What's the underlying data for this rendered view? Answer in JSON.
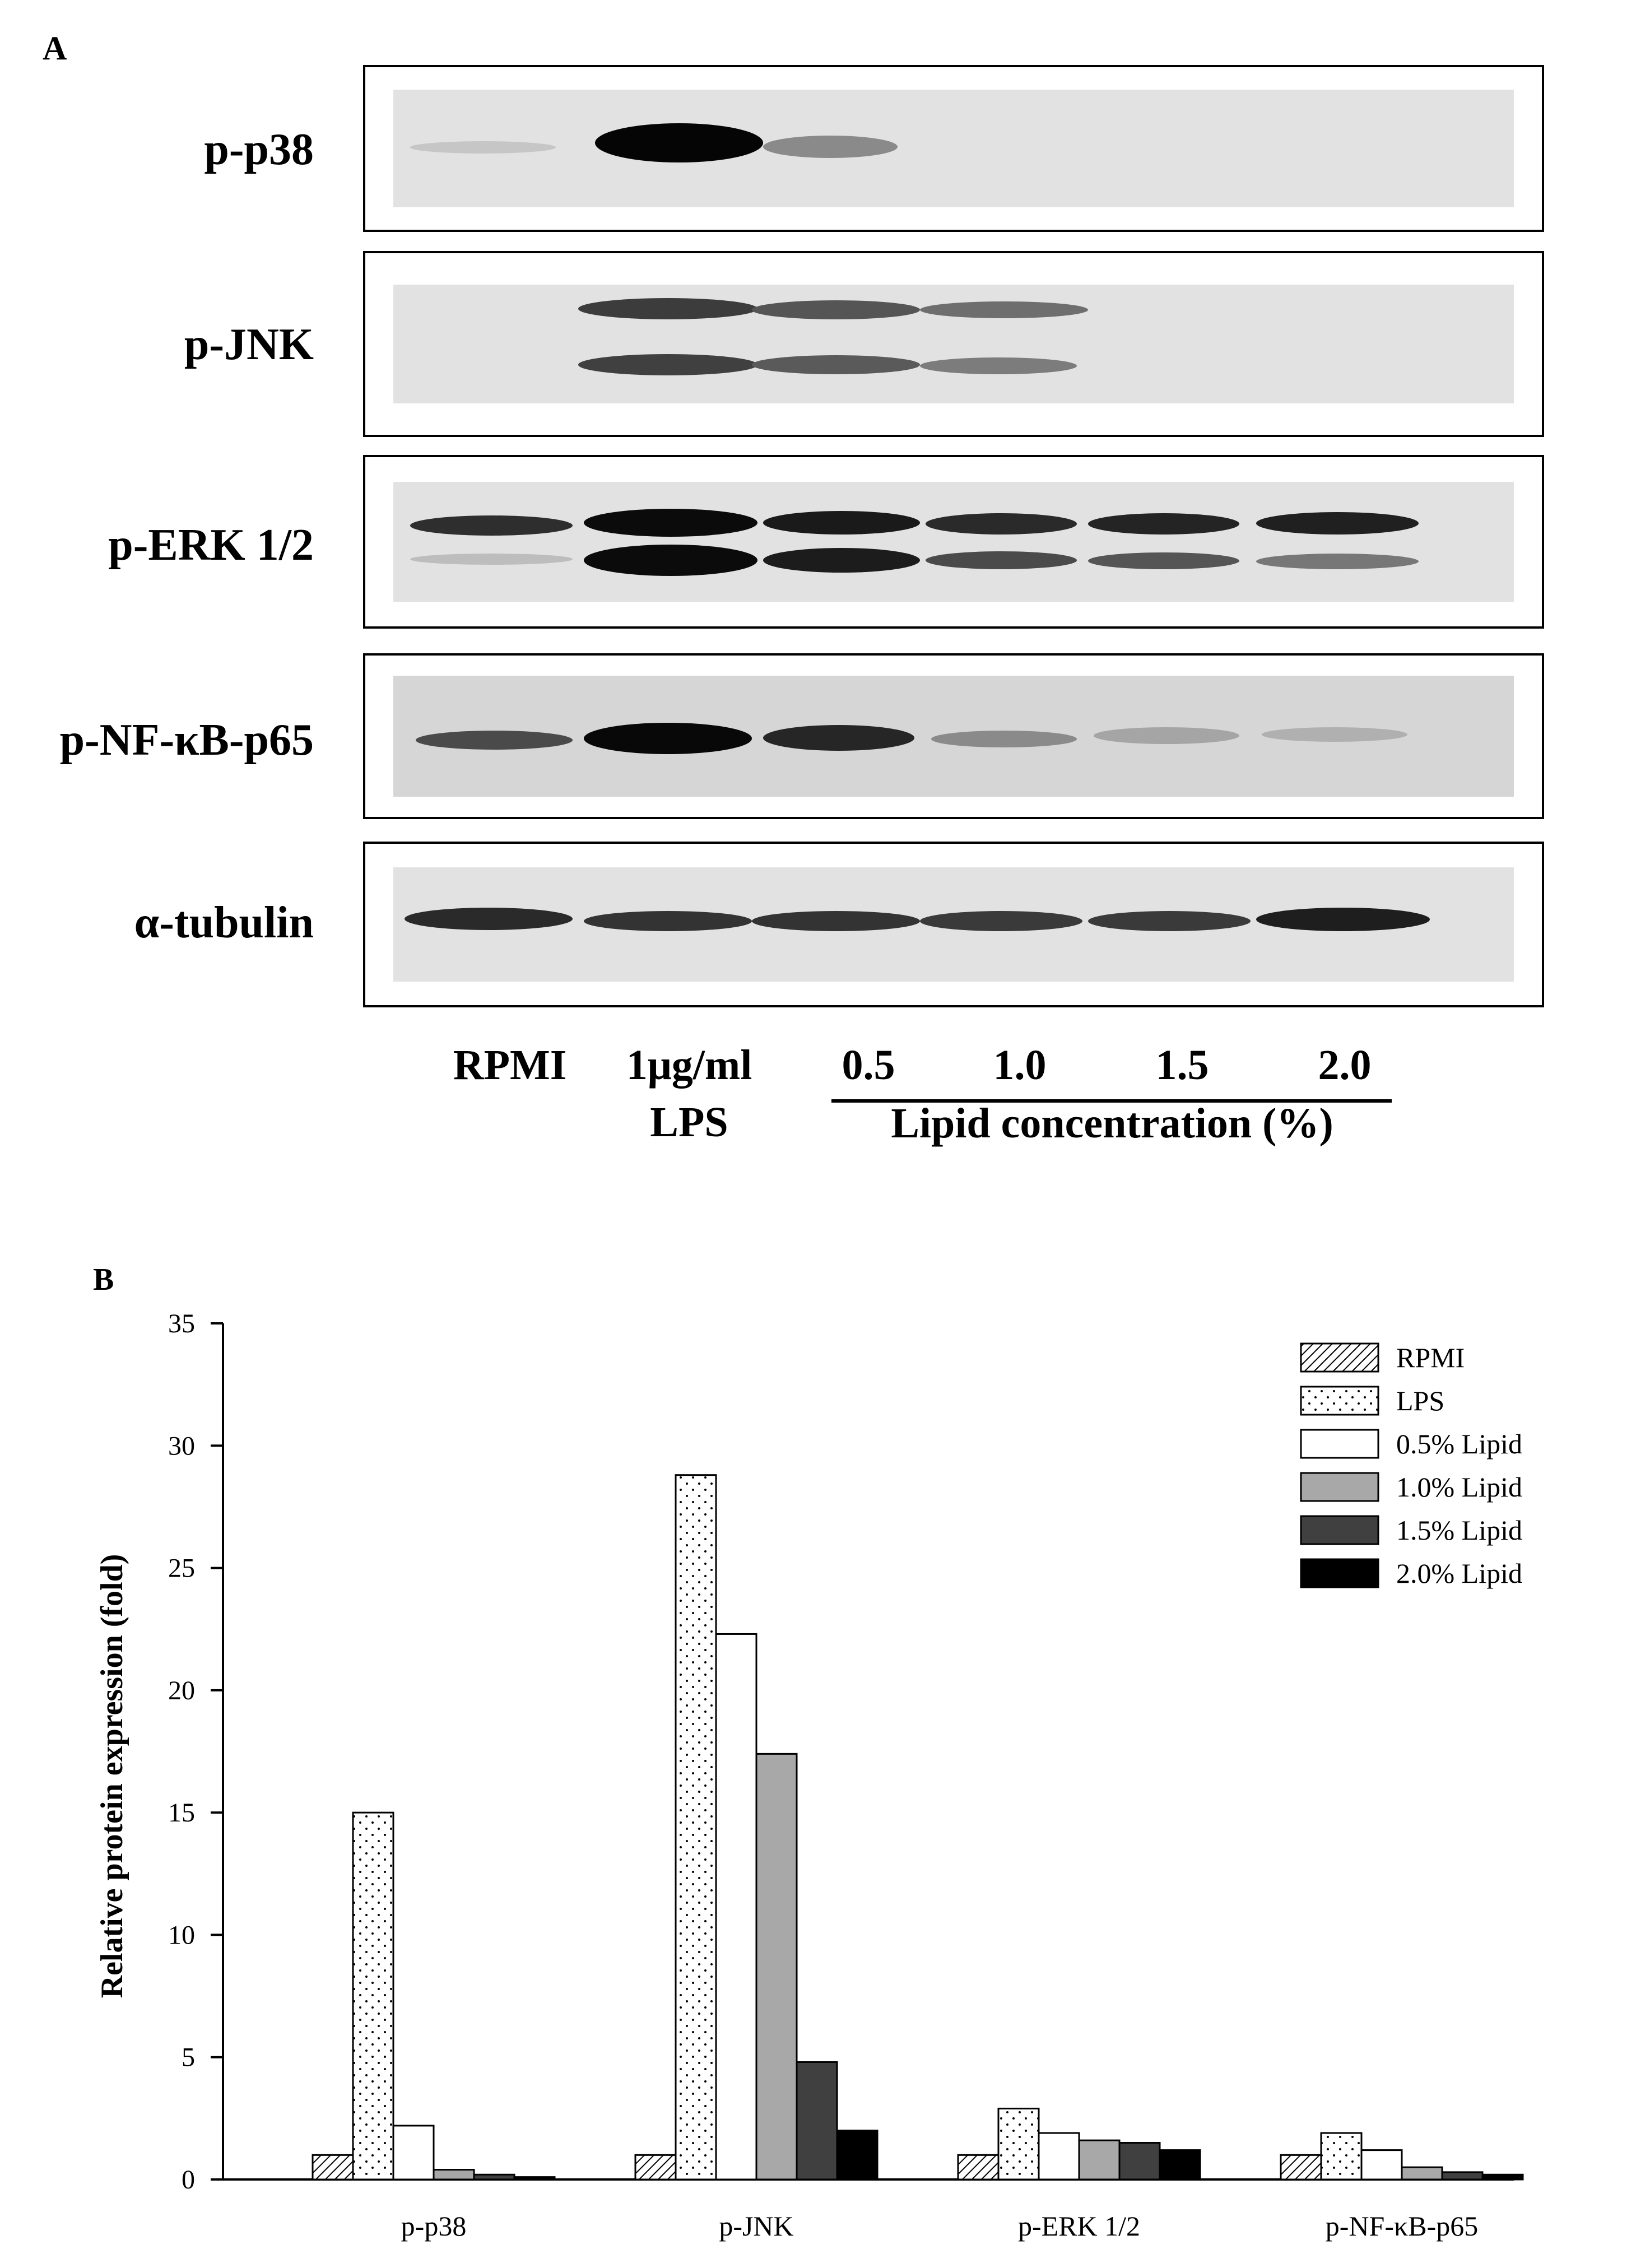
{
  "panel_a": {
    "letter": "A",
    "blots": [
      {
        "label": "p-p38"
      },
      {
        "label": "p-JNK"
      },
      {
        "label": "p-ERK 1/2"
      },
      {
        "label": "p-NF-κB-p65"
      },
      {
        "label": "α-tubulin"
      }
    ],
    "lanes": {
      "rpmi": "RPMI",
      "lps_line1": "1μg/ml",
      "lps_line2": "LPS",
      "conc": [
        "0.5",
        "1.0",
        "1.5",
        "2.0"
      ],
      "lipid_caption": "Lipid concentration (%)"
    }
  },
  "panel_b": {
    "letter": "B"
  },
  "chart_data": {
    "type": "bar",
    "title": "",
    "xlabel": "",
    "ylabel": "Relative protein expression (fold)",
    "ylim": [
      0,
      35
    ],
    "yticks": [
      0,
      5,
      10,
      15,
      20,
      25,
      30,
      35
    ],
    "grid": false,
    "legend_position": "top-right",
    "categories": [
      "p-p38",
      "p-JNK",
      "p-ERK 1/2",
      "p-NF-κB-p65"
    ],
    "series": [
      {
        "name": "RPMI",
        "values": [
          1.0,
          1.0,
          1.0,
          1.0
        ],
        "fill": "hatch",
        "color": "#ffffff"
      },
      {
        "name": "LPS",
        "values": [
          15.0,
          28.8,
          2.9,
          1.9
        ],
        "fill": "dots",
        "color": "#ffffff"
      },
      {
        "name": "0.5% Lipid",
        "values": [
          2.2,
          22.3,
          1.9,
          1.2
        ],
        "fill": "solid",
        "color": "#ffffff"
      },
      {
        "name": "1.0% Lipid",
        "values": [
          0.4,
          17.4,
          1.6,
          0.5
        ],
        "fill": "solid",
        "color": "#a8a8a8"
      },
      {
        "name": "1.5% Lipid",
        "values": [
          0.2,
          4.8,
          1.5,
          0.3
        ],
        "fill": "solid",
        "color": "#404040"
      },
      {
        "name": "2.0% Lipid",
        "values": [
          0.1,
          2.0,
          1.2,
          0.2
        ],
        "fill": "solid",
        "color": "#000000"
      }
    ]
  }
}
